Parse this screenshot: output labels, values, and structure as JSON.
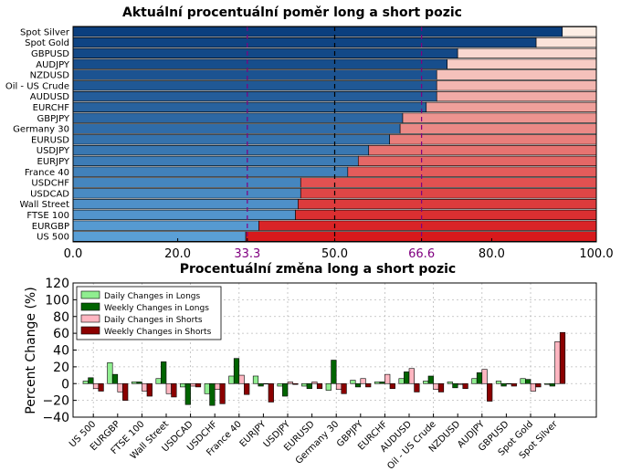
{
  "chart_data": [
    {
      "type": "bar",
      "orientation": "horizontal",
      "stacked": true,
      "title": "Aktuální procentuální poměr long a short pozic",
      "categories": [
        "Spot Silver",
        "Spot Gold",
        "GBPUSD",
        "AUDJPY",
        "NZDUSD",
        "Oil - US Crude",
        "AUDUSD",
        "EURCHF",
        "GBPJPY",
        "Germany 30",
        "EURUSD",
        "USDJPY",
        "EURJPY",
        "France 40",
        "USDCHF",
        "USDCAD",
        "Wall Street",
        "FTSE 100",
        "EURGBP",
        "US 500"
      ],
      "series": [
        {
          "values": [
            93.5,
            88.5,
            73.5,
            71.5,
            69.5,
            69.5,
            69.5,
            67.5,
            63.0,
            62.5,
            60.5,
            56.5,
            54.5,
            52.5,
            43.5,
            43.5,
            43.0,
            42.5,
            35.5,
            33.0
          ]
        },
        {
          "values": [
            6.5,
            11.5,
            26.5,
            28.5,
            30.5,
            30.5,
            30.5,
            32.5,
            37.0,
            37.5,
            39.5,
            43.5,
            45.5,
            47.5,
            56.5,
            56.5,
            57.0,
            57.5,
            64.5,
            67.0
          ]
        }
      ],
      "xlim": [
        0,
        100
      ],
      "xticks": [
        "0.0",
        "20.0",
        "33.3",
        "50.0",
        "66.6",
        "80.0",
        "100.0"
      ],
      "xtick_values": [
        0,
        20,
        33.3,
        50,
        66.6,
        80,
        100
      ],
      "reference_lines": [
        33.3,
        50,
        66.6
      ],
      "colors": {
        "long": [
          "#0b3f7e",
          "#5a9fd6"
        ],
        "short": [
          "#fdeee5",
          "#d7191c"
        ],
        "ref33": "#800080",
        "ref50": "#000000"
      }
    },
    {
      "type": "bar",
      "title": "Procentuální změna long a short pozic",
      "ylabel": "Percent Change (%)",
      "ylim": [
        -40,
        120
      ],
      "yticks": [
        "−40",
        "−20",
        "0",
        "20",
        "40",
        "60",
        "80",
        "100",
        "120"
      ],
      "ytick_values": [
        -40,
        -20,
        0,
        20,
        40,
        60,
        80,
        100,
        120
      ],
      "grid": true,
      "legend_position": "top-left",
      "categories": [
        "US 500",
        "EURGBP",
        "FTSE 100",
        "Wall Street",
        "USDCAD",
        "USDCHF",
        "France 40",
        "EURJPY",
        "USDJPY",
        "EURUSD",
        "Germany 30",
        "GBPJPY",
        "EURCHF",
        "AUDUSD",
        "Oil - US Crude",
        "NZDUSD",
        "AUDJPY",
        "GBPUSD",
        "Spot Gold",
        "Spot Silver"
      ],
      "series": [
        {
          "name": "Daily Changes in Longs",
          "color": "#90ee90",
          "values": [
            3,
            25,
            2,
            6,
            -4,
            -12,
            9,
            9,
            -3,
            -3,
            -8,
            4,
            2,
            6,
            3,
            2,
            6,
            3,
            6,
            -1
          ]
        },
        {
          "name": "Weekly Changes in Longs",
          "color": "#006400",
          "values": [
            7,
            11,
            2,
            26,
            -25,
            -26,
            30,
            -3,
            -15,
            -6,
            28,
            -4,
            2,
            14,
            9,
            -5,
            13,
            -3,
            5,
            -3
          ]
        },
        {
          "name": "Daily Changes in Shorts",
          "color": "#ffb6c1",
          "values": [
            -6,
            -10,
            -9,
            -12,
            -3,
            -7,
            10,
            0,
            2,
            2,
            -7,
            6,
            11,
            18,
            -7,
            -1,
            17,
            0,
            -9,
            50
          ]
        },
        {
          "name": "Weekly Changes in Shorts",
          "color": "#8b0000",
          "values": [
            -9,
            -20,
            -15,
            -16,
            -4,
            -24,
            -13,
            -22,
            -1,
            -6,
            -12,
            -4,
            -6,
            -10,
            -10,
            -6,
            -21,
            -3,
            -4,
            61
          ]
        }
      ]
    }
  ]
}
